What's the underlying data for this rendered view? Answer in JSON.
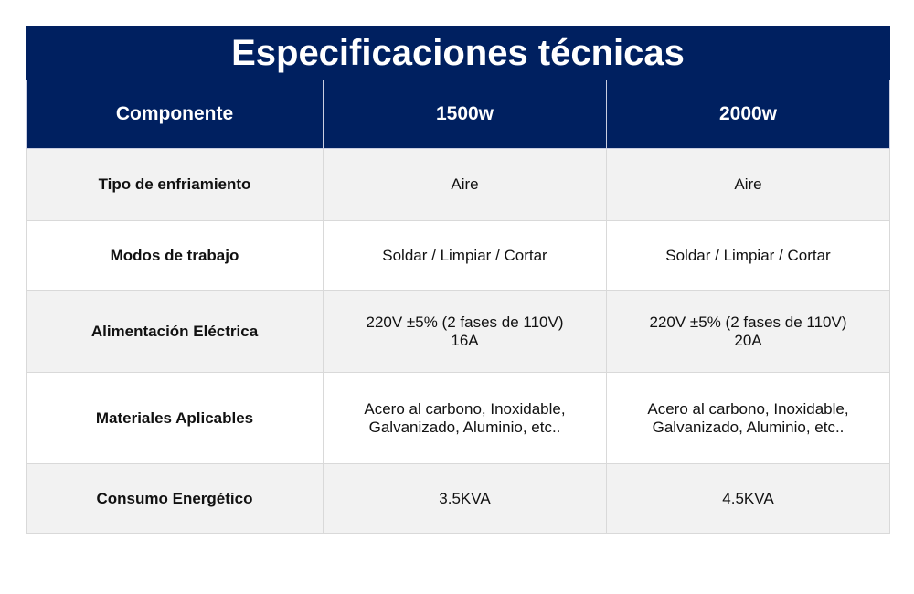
{
  "table": {
    "title": "Especificaciones técnicas",
    "header": [
      "Componente",
      "1500w",
      "2000w"
    ],
    "rows": [
      [
        [
          "Tipo de enfriamiento"
        ],
        [
          "Aire"
        ],
        [
          "Aire"
        ]
      ],
      [
        [
          "Modos de trabajo"
        ],
        [
          "Soldar / Limpiar / Cortar"
        ],
        [
          "Soldar / Limpiar / Cortar"
        ]
      ],
      [
        [
          "Alimentación Eléctrica"
        ],
        [
          "220V ±5% (2 fases de 110V)",
          "16A"
        ],
        [
          "220V ±5% (2 fases de 110V)",
          "20A"
        ]
      ],
      [
        [
          "Materiales Aplicables"
        ],
        [
          "Acero al carbono, Inoxidable,",
          "Galvanizado, Aluminio, etc.."
        ],
        [
          "Acero al carbono, Inoxidable,",
          "Galvanizado, Aluminio, etc.."
        ]
      ],
      [
        [
          "Consumo Energético"
        ],
        [
          "3.5KVA"
        ],
        [
          "4.5KVA"
        ]
      ]
    ]
  }
}
